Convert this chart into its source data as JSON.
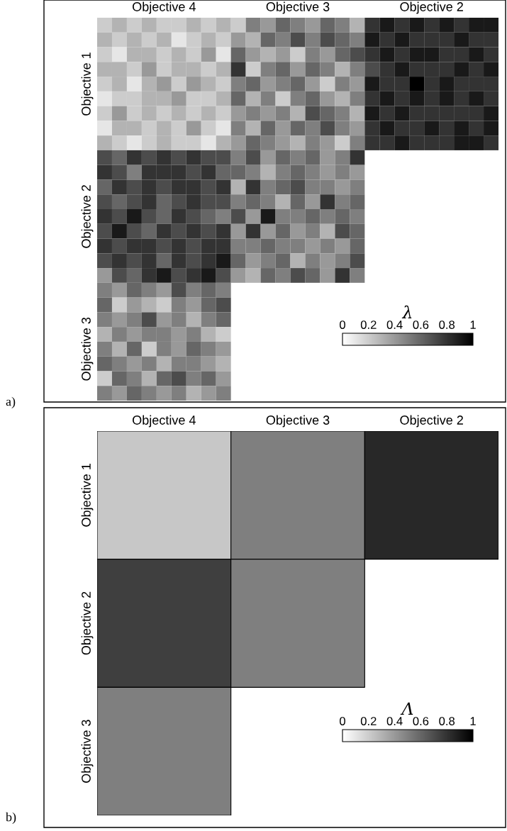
{
  "chart_data": [
    {
      "type": "heatmap",
      "clabel": "λ",
      "clim": [
        0,
        1
      ],
      "cticks": [
        0,
        0.2,
        0.4,
        0.6,
        0.8,
        1
      ],
      "annotations": [
        "a)"
      ],
      "categories": [
        null,
        null,
        null,
        null,
        "Objective 4",
        null,
        null,
        null,
        null,
        null,
        null,
        null,
        null,
        "Objective 3",
        null,
        null,
        null,
        null,
        null,
        null,
        null,
        null,
        "Objective 2",
        null,
        null,
        null,
        null
      ],
      "y_categories": [
        null,
        null,
        null,
        null,
        "Objective 1",
        null,
        null,
        null,
        null,
        null,
        null,
        null,
        null,
        "Objective 2",
        null,
        null,
        null,
        null,
        null,
        null,
        null,
        null,
        "Objective 3",
        null,
        null,
        null
      ],
      "cells": [
        [
          0.2,
          0.3,
          0.2,
          0.3,
          0.2,
          0.2,
          0.3,
          0.2,
          0.3,
          0.2,
          0.5,
          0.4,
          0.6,
          0.5,
          0.4,
          0.6,
          0.5,
          0.3,
          0.8,
          0.9,
          0.8,
          0.9,
          0.8,
          0.9,
          0.8,
          0.9,
          0.9
        ],
        [
          0.3,
          0.2,
          0.3,
          0.2,
          0.3,
          0.1,
          0.2,
          0.3,
          0.2,
          0.4,
          0.3,
          0.6,
          0.5,
          0.7,
          0.5,
          0.7,
          0.6,
          0.5,
          0.9,
          0.8,
          0.9,
          0.8,
          0.8,
          0.8,
          0.9,
          0.8,
          0.8
        ],
        [
          0.2,
          0.1,
          0.3,
          0.3,
          0.2,
          0.3,
          0.2,
          0.4,
          0.1,
          0.6,
          0.4,
          0.3,
          0.4,
          0.2,
          0.5,
          0.4,
          0.6,
          0.7,
          0.8,
          0.9,
          0.8,
          0.9,
          0.9,
          0.8,
          0.8,
          0.9,
          0.8
        ],
        [
          0.3,
          0.3,
          0.2,
          0.4,
          0.2,
          0.3,
          0.3,
          0.2,
          0.3,
          0.8,
          0.2,
          0.5,
          0.6,
          0.4,
          0.6,
          0.5,
          0.3,
          0.5,
          0.7,
          0.8,
          0.9,
          0.8,
          0.8,
          0.8,
          0.9,
          0.8,
          0.9
        ],
        [
          0.2,
          0.3,
          0.1,
          0.3,
          0.4,
          0.2,
          0.4,
          0.3,
          0.2,
          0.5,
          0.6,
          0.4,
          0.5,
          0.6,
          0.4,
          0.2,
          0.5,
          0.4,
          0.9,
          0.8,
          0.8,
          1.0,
          0.8,
          0.9,
          0.8,
          0.8,
          0.8
        ],
        [
          0.1,
          0.2,
          0.2,
          0.3,
          0.3,
          0.4,
          0.2,
          0.2,
          0.3,
          0.6,
          0.3,
          0.5,
          0.2,
          0.5,
          0.6,
          0.4,
          0.3,
          0.5,
          0.8,
          0.9,
          0.8,
          0.9,
          0.8,
          0.9,
          0.8,
          0.9,
          0.8
        ],
        [
          0.2,
          0.4,
          0.2,
          0.3,
          0.2,
          0.3,
          0.2,
          0.3,
          0.2,
          0.4,
          0.5,
          0.4,
          0.5,
          0.3,
          0.7,
          0.6,
          0.5,
          0.3,
          0.9,
          0.8,
          0.9,
          0.8,
          0.8,
          0.8,
          0.8,
          0.8,
          0.9
        ],
        [
          0.1,
          0.3,
          0.3,
          0.2,
          0.3,
          0.2,
          0.4,
          0.2,
          0.1,
          0.5,
          0.3,
          0.6,
          0.4,
          0.6,
          0.5,
          0.7,
          0.5,
          0.4,
          0.8,
          0.9,
          0.8,
          0.8,
          0.9,
          0.8,
          0.9,
          0.8,
          0.9
        ],
        [
          0.3,
          0.2,
          0.1,
          0.2,
          0.3,
          0.2,
          0.2,
          0.1,
          0.3,
          0.4,
          0.6,
          0.5,
          0.4,
          0.3,
          0.5,
          0.4,
          0.2,
          0.5,
          0.8,
          0.8,
          0.9,
          0.8,
          0.8,
          0.8,
          0.9,
          0.9,
          0.8
        ],
        [
          0.7,
          0.6,
          0.8,
          0.7,
          0.8,
          0.7,
          0.8,
          0.7,
          0.7,
          0.5,
          0.7,
          0.4,
          0.6,
          0.5,
          0.6,
          0.4,
          0.5,
          0.8,
          null,
          null,
          null,
          null,
          null,
          null,
          null,
          null,
          null
        ],
        [
          0.8,
          0.7,
          0.5,
          0.8,
          0.8,
          0.8,
          0.7,
          0.8,
          0.6,
          0.6,
          0.5,
          0.3,
          0.5,
          0.6,
          0.5,
          0.4,
          0.5,
          0.4,
          null,
          null,
          null,
          null,
          null,
          null,
          null,
          null,
          null
        ],
        [
          0.6,
          0.8,
          0.7,
          0.8,
          0.7,
          0.8,
          0.8,
          0.7,
          0.8,
          0.3,
          0.8,
          0.5,
          0.6,
          0.7,
          0.5,
          0.5,
          0.4,
          0.5,
          null,
          null,
          null,
          null,
          null,
          null,
          null,
          null,
          null
        ],
        [
          0.7,
          0.6,
          0.7,
          0.8,
          0.6,
          0.7,
          0.8,
          0.7,
          0.7,
          0.5,
          0.6,
          0.5,
          0.3,
          0.6,
          0.4,
          0.8,
          0.5,
          0.6,
          null,
          null,
          null,
          null,
          null,
          null,
          null,
          null,
          null
        ],
        [
          0.8,
          0.7,
          0.9,
          0.7,
          0.6,
          0.8,
          0.7,
          0.6,
          0.5,
          0.7,
          0.4,
          0.9,
          0.5,
          0.5,
          0.6,
          0.5,
          0.6,
          0.5,
          null,
          null,
          null,
          null,
          null,
          null,
          null,
          null,
          null
        ],
        [
          0.7,
          0.9,
          0.7,
          0.6,
          0.8,
          0.7,
          0.8,
          0.7,
          0.8,
          0.4,
          0.8,
          0.4,
          0.6,
          0.4,
          0.5,
          0.3,
          0.7,
          0.6,
          null,
          null,
          null,
          null,
          null,
          null,
          null,
          null,
          null
        ],
        [
          0.8,
          0.7,
          0.8,
          0.8,
          0.7,
          0.8,
          0.7,
          0.8,
          0.8,
          0.5,
          0.5,
          0.6,
          0.5,
          0.5,
          0.4,
          0.5,
          0.4,
          0.6,
          null,
          null,
          null,
          null,
          null,
          null,
          null,
          null,
          null
        ],
        [
          0.7,
          0.8,
          0.7,
          0.8,
          0.6,
          0.8,
          0.7,
          0.8,
          0.9,
          0.6,
          0.4,
          0.5,
          0.6,
          0.3,
          0.5,
          0.4,
          0.5,
          0.7,
          null,
          null,
          null,
          null,
          null,
          null,
          null,
          null,
          null
        ],
        [
          0.4,
          0.7,
          0.6,
          0.8,
          0.9,
          0.7,
          0.8,
          0.9,
          0.7,
          0.4,
          0.3,
          0.6,
          0.5,
          0.7,
          0.6,
          0.4,
          0.8,
          0.5,
          null,
          null,
          null,
          null,
          null,
          null,
          null,
          null,
          null
        ],
        [
          0.5,
          0.4,
          0.6,
          0.5,
          0.4,
          0.7,
          0.5,
          0.6,
          0.5,
          null,
          null,
          null,
          null,
          null,
          null,
          null,
          null,
          null,
          null,
          null,
          null,
          null,
          null,
          null,
          null,
          null,
          null
        ],
        [
          0.6,
          0.2,
          0.4,
          0.3,
          0.2,
          0.5,
          0.4,
          0.6,
          0.7,
          null,
          null,
          null,
          null,
          null,
          null,
          null,
          null,
          null,
          null,
          null,
          null,
          null,
          null,
          null,
          null,
          null,
          null
        ],
        [
          0.5,
          0.4,
          0.5,
          0.7,
          0.4,
          0.5,
          0.3,
          0.5,
          0.6,
          null,
          null,
          null,
          null,
          null,
          null,
          null,
          null,
          null,
          null,
          null,
          null,
          null,
          null,
          null,
          null,
          null,
          null
        ],
        [
          0.3,
          0.5,
          0.4,
          0.5,
          0.5,
          0.4,
          0.5,
          0.3,
          0.2,
          null,
          null,
          null,
          null,
          null,
          null,
          null,
          null,
          null,
          null,
          null,
          null,
          null,
          null,
          null,
          null,
          null,
          null
        ],
        [
          0.5,
          0.3,
          0.6,
          0.2,
          0.5,
          0.4,
          0.6,
          0.5,
          0.4,
          null,
          null,
          null,
          null,
          null,
          null,
          null,
          null,
          null,
          null,
          null,
          null,
          null,
          null,
          null,
          null,
          null,
          null
        ],
        [
          0.6,
          0.5,
          0.4,
          0.5,
          0.3,
          0.5,
          0.5,
          0.4,
          0.3,
          null,
          null,
          null,
          null,
          null,
          null,
          null,
          null,
          null,
          null,
          null,
          null,
          null,
          null,
          null,
          null,
          null,
          null
        ],
        [
          0.2,
          0.6,
          0.5,
          0.3,
          0.6,
          0.7,
          0.5,
          0.6,
          0.4,
          null,
          null,
          null,
          null,
          null,
          null,
          null,
          null,
          null,
          null,
          null,
          null,
          null,
          null,
          null,
          null,
          null,
          null
        ],
        [
          0.5,
          0.4,
          0.6,
          0.5,
          0.4,
          0.5,
          0.3,
          0.4,
          0.5,
          null,
          null,
          null,
          null,
          null,
          null,
          null,
          null,
          null,
          null,
          null,
          null,
          null,
          null,
          null,
          null,
          null,
          null
        ]
      ]
    },
    {
      "type": "heatmap",
      "clabel": "Λ",
      "clim": [
        0,
        1
      ],
      "cticks": [
        0,
        0.2,
        0.4,
        0.6,
        0.8,
        1
      ],
      "annotations": [
        "b)"
      ],
      "categories": [
        "Objective 4",
        "Objective 3",
        "Objective 2"
      ],
      "y_categories": [
        "Objective 1",
        "Objective 2",
        "Objective 3"
      ],
      "cells": [
        [
          0.22,
          0.5,
          0.84
        ],
        [
          0.75,
          0.5,
          null
        ],
        [
          0.5,
          null,
          null
        ]
      ]
    }
  ]
}
